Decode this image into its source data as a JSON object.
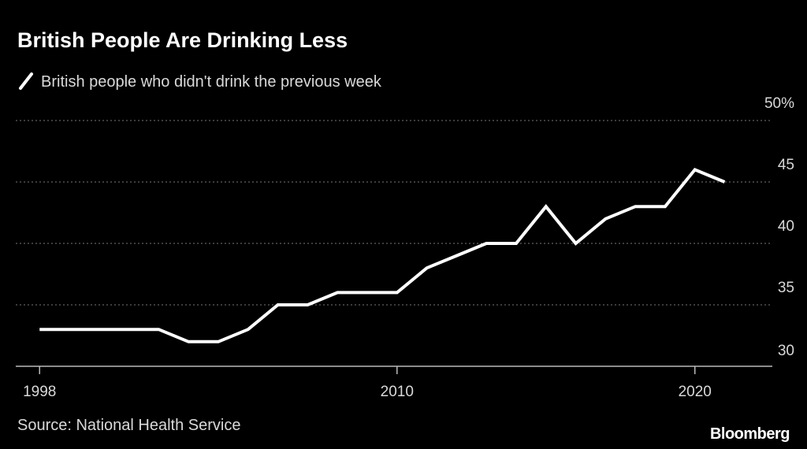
{
  "chart_data": {
    "type": "line",
    "title": "British People Are Drinking Less",
    "source": "Source: National Health Service",
    "brand": "Bloomberg",
    "x": [
      1998,
      1999,
      2000,
      2001,
      2002,
      2003,
      2004,
      2005,
      2006,
      2007,
      2008,
      2009,
      2010,
      2011,
      2012,
      2013,
      2014,
      2015,
      2016,
      2017,
      2018,
      2019,
      2020,
      2021
    ],
    "series": [
      {
        "name": "British people who didn't drink the previous week",
        "color": "#ffffff",
        "values": [
          33,
          33,
          33,
          33,
          33,
          32,
          32,
          33,
          35,
          35,
          36,
          36,
          36,
          38,
          39,
          40,
          40,
          43,
          40,
          42,
          43,
          43,
          46,
          45
        ]
      }
    ],
    "xlim": [
      1997.2,
      2022.6
    ],
    "xticks": [
      1998,
      2010,
      2020
    ],
    "ylim": [
      30,
      50
    ],
    "yticks": [
      30,
      35,
      40,
      45,
      {
        "value": 50,
        "label": "50%"
      }
    ],
    "grid": true
  }
}
